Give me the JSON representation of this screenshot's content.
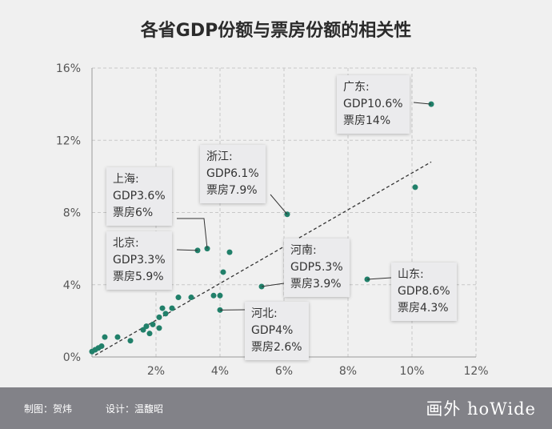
{
  "chart_data": {
    "type": "scatter",
    "title": "各省GDP份额与票房份额的相关性",
    "x_ticks": [
      "2%",
      "4%",
      "6%",
      "8%",
      "10%",
      "12%"
    ],
    "y_ticks": [
      "0%",
      "4%",
      "8%",
      "12%",
      "16%"
    ],
    "xlim": [
      0,
      12
    ],
    "ylim": [
      0,
      16
    ],
    "grid": true,
    "point_color": "#21806a",
    "points": [
      {
        "x": 10.6,
        "y": 14.0
      },
      {
        "x": 10.1,
        "y": 9.4
      },
      {
        "x": 6.1,
        "y": 7.9
      },
      {
        "x": 3.6,
        "y": 6.0
      },
      {
        "x": 3.3,
        "y": 5.9
      },
      {
        "x": 4.3,
        "y": 5.8
      },
      {
        "x": 4.1,
        "y": 4.7
      },
      {
        "x": 8.6,
        "y": 4.3
      },
      {
        "x": 5.3,
        "y": 3.9
      },
      {
        "x": 3.8,
        "y": 3.4
      },
      {
        "x": 4.0,
        "y": 3.4
      },
      {
        "x": 3.1,
        "y": 3.3
      },
      {
        "x": 2.7,
        "y": 3.3
      },
      {
        "x": 2.2,
        "y": 2.7
      },
      {
        "x": 2.5,
        "y": 2.7
      },
      {
        "x": 2.3,
        "y": 2.4
      },
      {
        "x": 4.0,
        "y": 2.6
      },
      {
        "x": 2.1,
        "y": 2.2
      },
      {
        "x": 1.9,
        "y": 1.8
      },
      {
        "x": 1.7,
        "y": 1.7
      },
      {
        "x": 1.6,
        "y": 1.5
      },
      {
        "x": 2.1,
        "y": 1.6
      },
      {
        "x": 1.8,
        "y": 1.3
      },
      {
        "x": 0.8,
        "y": 1.1
      },
      {
        "x": 0.4,
        "y": 1.1
      },
      {
        "x": 1.2,
        "y": 0.9
      },
      {
        "x": 0.3,
        "y": 0.6
      },
      {
        "x": 0.2,
        "y": 0.5
      },
      {
        "x": 0.1,
        "y": 0.4
      },
      {
        "x": 0.0,
        "y": 0.3
      }
    ],
    "trendline": {
      "from": [
        0.1,
        0.1
      ],
      "to": [
        10.6,
        10.8
      ]
    },
    "annotations": [
      {
        "name": "guangdong",
        "lines": [
          "广东:",
          "GDP10.6%",
          "票房14%"
        ],
        "target": [
          10.6,
          14.0
        ]
      },
      {
        "name": "zhejiang",
        "lines": [
          "浙江:",
          "GDP6.1%",
          "票房7.9%"
        ],
        "target": [
          6.1,
          7.9
        ]
      },
      {
        "name": "shanghai",
        "lines": [
          "上海:",
          "GDP3.6%",
          "票房6%"
        ],
        "target": [
          3.6,
          6.0
        ]
      },
      {
        "name": "beijing",
        "lines": [
          "北京:",
          "GDP3.3%",
          "票房5.9%"
        ],
        "target": [
          3.3,
          5.9
        ]
      },
      {
        "name": "henan",
        "lines": [
          "河南:",
          "GDP5.3%",
          "票房3.9%"
        ],
        "target": [
          5.3,
          3.9
        ]
      },
      {
        "name": "shandong",
        "lines": [
          "山东:",
          "GDP8.6%",
          "票房4.3%"
        ],
        "target": [
          8.6,
          4.3
        ]
      },
      {
        "name": "hebei",
        "lines": [
          "河北:",
          "GDP4%",
          "票房2.6%"
        ],
        "target": [
          4.0,
          2.6
        ]
      }
    ]
  },
  "footer": {
    "maker": "制图：贺炜",
    "designer": "设计：温馥昭",
    "logo": "画外 hoWide"
  }
}
